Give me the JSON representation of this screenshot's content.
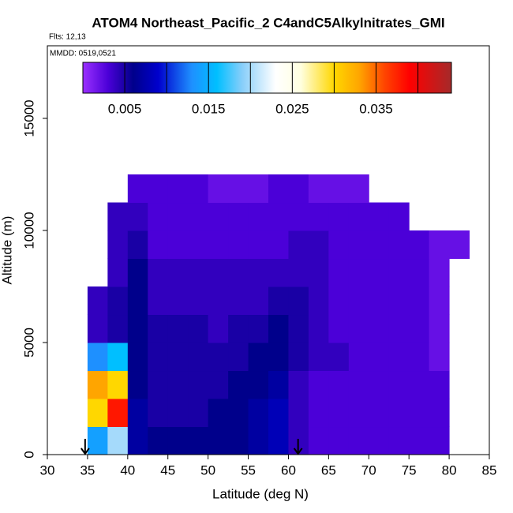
{
  "chart_data": {
    "type": "heatmap",
    "title": "ATOM4 Northeast_Pacific_2 C4andC5Alkylnitrates_GMI",
    "subtitle": "Flts: 12,13",
    "annotation": "MMDD: 0519,0521",
    "x_label": "Latitude (deg N)",
    "y_label": "Altitude (m)",
    "xlim": [
      30,
      85
    ],
    "xticks": [
      30,
      35,
      40,
      45,
      50,
      55,
      60,
      65,
      70,
      75,
      80,
      85
    ],
    "ylim": [
      0,
      18240
    ],
    "yticks": [
      0,
      5000,
      10000,
      15000
    ],
    "arrows": [
      34.7,
      61.2
    ],
    "x_bins": [
      35,
      37.5,
      40,
      42.5,
      45,
      47.5,
      50,
      52.5,
      55,
      57.5,
      60,
      62.5,
      65,
      67.5,
      70,
      72.5,
      75,
      77.5,
      80,
      82.5
    ],
    "y_bins": [
      0,
      1250,
      2500,
      3750,
      5000,
      6250,
      7500,
      8750,
      10000,
      11250,
      12500
    ],
    "z": [
      [
        0.014,
        0.02,
        0.007,
        0.006,
        0.006,
        0.006,
        0.006,
        0.006,
        0.007,
        0.008,
        0.004,
        0.003,
        0.003,
        0.003,
        0.003,
        0.003,
        0.003,
        0.003,
        null
      ],
      [
        0.03,
        0.038,
        0.007,
        0.005,
        0.005,
        0.005,
        0.006,
        0.006,
        0.007,
        0.008,
        0.004,
        0.003,
        0.003,
        0.003,
        0.003,
        0.003,
        0.003,
        0.003,
        null
      ],
      [
        0.033,
        0.03,
        0.006,
        0.005,
        0.005,
        0.005,
        0.005,
        0.006,
        0.006,
        0.007,
        0.004,
        0.003,
        0.003,
        0.003,
        0.003,
        0.003,
        0.003,
        0.003,
        null
      ],
      [
        0.013,
        0.016,
        0.006,
        0.005,
        0.005,
        0.005,
        0.005,
        0.005,
        0.006,
        0.006,
        0.005,
        0.004,
        0.004,
        0.003,
        0.003,
        0.003,
        0.003,
        0.002,
        null
      ],
      [
        0.004,
        0.005,
        0.006,
        0.005,
        0.005,
        0.005,
        0.004,
        0.005,
        0.005,
        0.006,
        0.005,
        0.004,
        0.003,
        0.003,
        0.003,
        0.003,
        0.003,
        0.002,
        null
      ],
      [
        0.004,
        0.005,
        0.006,
        0.004,
        0.004,
        0.004,
        0.004,
        0.004,
        0.004,
        0.005,
        0.005,
        0.004,
        0.003,
        0.003,
        0.003,
        0.003,
        0.003,
        0.002,
        null
      ],
      [
        null,
        0.004,
        0.006,
        0.004,
        0.004,
        0.004,
        0.004,
        0.004,
        0.004,
        0.004,
        0.004,
        0.004,
        0.003,
        0.003,
        0.003,
        0.003,
        0.003,
        0.002,
        null
      ],
      [
        null,
        0.004,
        0.005,
        0.003,
        0.003,
        0.003,
        0.003,
        0.003,
        0.003,
        0.003,
        0.004,
        0.004,
        0.003,
        0.003,
        0.003,
        0.003,
        0.003,
        0.002,
        0.002
      ],
      [
        null,
        0.004,
        0.004,
        0.003,
        0.003,
        0.003,
        0.003,
        0.003,
        0.003,
        0.003,
        0.003,
        0.003,
        0.003,
        0.003,
        0.003,
        0.003,
        null,
        null,
        null
      ],
      [
        null,
        null,
        0.003,
        0.003,
        0.003,
        0.003,
        0.002,
        0.002,
        0.002,
        0.003,
        0.003,
        0.002,
        0.002,
        0.002,
        null,
        null,
        null,
        null,
        null
      ]
    ],
    "colorbar_range": [
      0,
      0.044
    ],
    "colorbar_ticks": [
      0.005,
      0.015,
      0.025,
      0.035
    ],
    "colorbar_breaks": [
      0.005,
      0.01,
      0.015,
      0.02,
      0.025,
      0.03,
      0.035,
      0.04
    ],
    "colorscale": [
      [
        0,
        "#9b30ff"
      ],
      [
        0.003,
        "#4b00d8"
      ],
      [
        0.006,
        "#00008b"
      ],
      [
        0.009,
        "#0000cd"
      ],
      [
        0.013,
        "#1e90ff"
      ],
      [
        0.016,
        "#00bfff"
      ],
      [
        0.019,
        "#87cefa"
      ],
      [
        0.023,
        "#ffffff"
      ],
      [
        0.026,
        "#ffffe0"
      ],
      [
        0.03,
        "#ffd700"
      ],
      [
        0.033,
        "#ffa500"
      ],
      [
        0.036,
        "#ff4500"
      ],
      [
        0.039,
        "#ff0000"
      ],
      [
        0.044,
        "#a52a2a"
      ]
    ]
  }
}
